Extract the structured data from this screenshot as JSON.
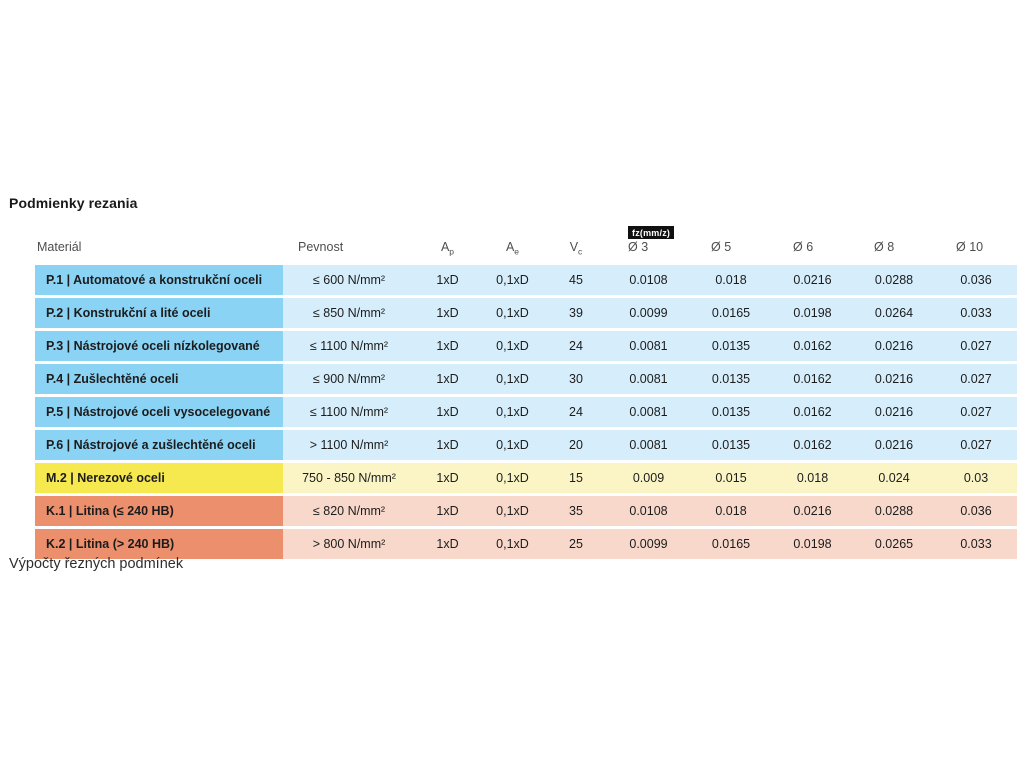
{
  "page": {
    "title": "Podmienky rezania",
    "section_footer": "Výpočty řezných podmínek"
  },
  "colors": {
    "steel_dark": "#8ad3f4",
    "steel_light": "#d6eefb",
    "stainless_dark": "#f6e94f",
    "stainless_light": "#fbf5c6",
    "cast_iron_dark": "#ec8f6c",
    "cast_iron_light": "#f8d8cb",
    "fz_badge_bg": "#101010",
    "fz_badge_text": "#ffffff"
  },
  "table": {
    "fz_badge": "fz(mm/z)",
    "columns": [
      {
        "id": "material",
        "label": "Materiál",
        "sub": ""
      },
      {
        "id": "pevnost",
        "label": "Pevnost",
        "sub": ""
      },
      {
        "id": "ap",
        "label": "A",
        "sub": "p"
      },
      {
        "id": "ae",
        "label": "A",
        "sub": "e"
      },
      {
        "id": "vc",
        "label": "V",
        "sub": "c"
      },
      {
        "id": "d3",
        "label": "Ø 3",
        "sub": ""
      },
      {
        "id": "d5",
        "label": "Ø 5",
        "sub": ""
      },
      {
        "id": "d6",
        "label": "Ø 6",
        "sub": ""
      },
      {
        "id": "d8",
        "label": "Ø 8",
        "sub": ""
      },
      {
        "id": "d10",
        "label": "Ø 10",
        "sub": ""
      }
    ],
    "rows": [
      {
        "group": "P",
        "material": "P.1 | Automatové a konstrukční oceli",
        "pevnost": "≤ 600 N/mm²",
        "ap": "1xD",
        "ae": "0,1xD",
        "vc": "45",
        "fz": [
          "0.0108",
          "0.018",
          "0.0216",
          "0.0288",
          "0.036"
        ]
      },
      {
        "group": "P",
        "material": "P.2 | Konstrukční a lité oceli",
        "pevnost": "≤ 850 N/mm²",
        "ap": "1xD",
        "ae": "0,1xD",
        "vc": "39",
        "fz": [
          "0.0099",
          "0.0165",
          "0.0198",
          "0.0264",
          "0.033"
        ]
      },
      {
        "group": "P",
        "material": "P.3 | Nástrojové oceli nízkolegované",
        "pevnost": "≤ 1100 N/mm²",
        "ap": "1xD",
        "ae": "0,1xD",
        "vc": "24",
        "fz": [
          "0.0081",
          "0.0135",
          "0.0162",
          "0.0216",
          "0.027"
        ]
      },
      {
        "group": "P",
        "material": "P.4 | Zušlechtěné oceli",
        "pevnost": "≤ 900 N/mm²",
        "ap": "1xD",
        "ae": "0,1xD",
        "vc": "30",
        "fz": [
          "0.0081",
          "0.0135",
          "0.0162",
          "0.0216",
          "0.027"
        ]
      },
      {
        "group": "P",
        "material": "P.5 | Nástrojové oceli vysocelegované",
        "pevnost": "≤ 1100 N/mm²",
        "ap": "1xD",
        "ae": "0,1xD",
        "vc": "24",
        "fz": [
          "0.0081",
          "0.0135",
          "0.0162",
          "0.0216",
          "0.027"
        ]
      },
      {
        "group": "P",
        "material": "P.6 | Nástrojové a zušlechtěné oceli",
        "pevnost": "> 1100 N/mm²",
        "ap": "1xD",
        "ae": "0,1xD",
        "vc": "20",
        "fz": [
          "0.0081",
          "0.0135",
          "0.0162",
          "0.0216",
          "0.027"
        ]
      },
      {
        "group": "M",
        "material": "M.2 | Nerezové oceli",
        "pevnost": "750 - 850 N/mm²",
        "ap": "1xD",
        "ae": "0,1xD",
        "vc": "15",
        "fz": [
          "0.009",
          "0.015",
          "0.018",
          "0.024",
          "0.03"
        ]
      },
      {
        "group": "K",
        "material": "K.1 | Litina (≤ 240 HB)",
        "pevnost": "≤ 820 N/mm²",
        "ap": "1xD",
        "ae": "0,1xD",
        "vc": "35",
        "fz": [
          "0.0108",
          "0.018",
          "0.0216",
          "0.0288",
          "0.036"
        ]
      },
      {
        "group": "K",
        "material": "K.2 | Litina (> 240 HB)",
        "pevnost": "> 800 N/mm²",
        "ap": "1xD",
        "ae": "0,1xD",
        "vc": "25",
        "fz": [
          "0.0099",
          "0.0165",
          "0.0198",
          "0.0265",
          "0.033"
        ]
      }
    ]
  }
}
